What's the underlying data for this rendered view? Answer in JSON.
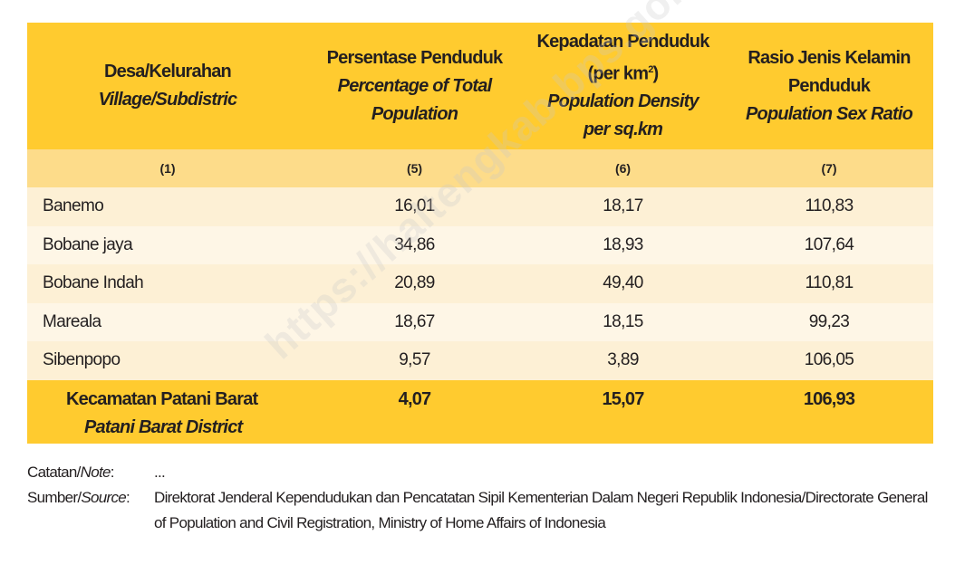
{
  "header": {
    "col1": {
      "id": "Desa/Kelurahan",
      "en": "Village/Subdistric"
    },
    "col2": {
      "id": "Persentase Penduduk",
      "en1": "Percentage of Total",
      "en2": "Population"
    },
    "col3": {
      "id1": "Kepadatan Penduduk",
      "id2": "(per km",
      "sup": "2",
      "id2_end": ")",
      "en1": "Population Density",
      "en2": "per sq.km"
    },
    "col4": {
      "id1": "Rasio Jenis Kelamin",
      "id2": "Penduduk",
      "en": "Population Sex Ratio"
    }
  },
  "column_numbers": [
    "(1)",
    "(5)",
    "(6)",
    "(7)"
  ],
  "rows": [
    {
      "name": "Banemo",
      "pct": "16,01",
      "density": "18,17",
      "ratio": "110,83"
    },
    {
      "name": "Bobane jaya",
      "pct": "34,86",
      "density": "18,93",
      "ratio": "107,64"
    },
    {
      "name": "Bobane Indah",
      "pct": "20,89",
      "density": "49,40",
      "ratio": "110,81"
    },
    {
      "name": "Mareala",
      "pct": "18,67",
      "density": "18,15",
      "ratio": "99,23"
    },
    {
      "name": "Sibenpopo",
      "pct": "9,57",
      "density": "3,89",
      "ratio": "106,05"
    }
  ],
  "total": {
    "name_id": "Kecamatan Patani Barat",
    "name_en": "Patani Barat  District",
    "pct": "4,07",
    "density": "15,07",
    "ratio": "106,93"
  },
  "notes": {
    "note_label_id": "Catatan/",
    "note_label_en": "Note",
    "note_colon": ":",
    "note_text": "...",
    "source_label_id": "Sumber/",
    "source_label_en": "Source",
    "source_colon": ":",
    "source_text": "Direktorat Jenderal Kependudukan dan Pencatatan Sipil Kementerian Dalam Negeri Republik Indonesia/Directorate General of Population and Civil Registration, Ministry of Home Affairs of Indonesia"
  },
  "watermark": "https://haltengkab.bps.go.id",
  "colors": {
    "header": "#ffcb2f",
    "subheader": "#fddc8a",
    "row_odd": "#fdf0d5",
    "row_even": "#fef6e6"
  }
}
